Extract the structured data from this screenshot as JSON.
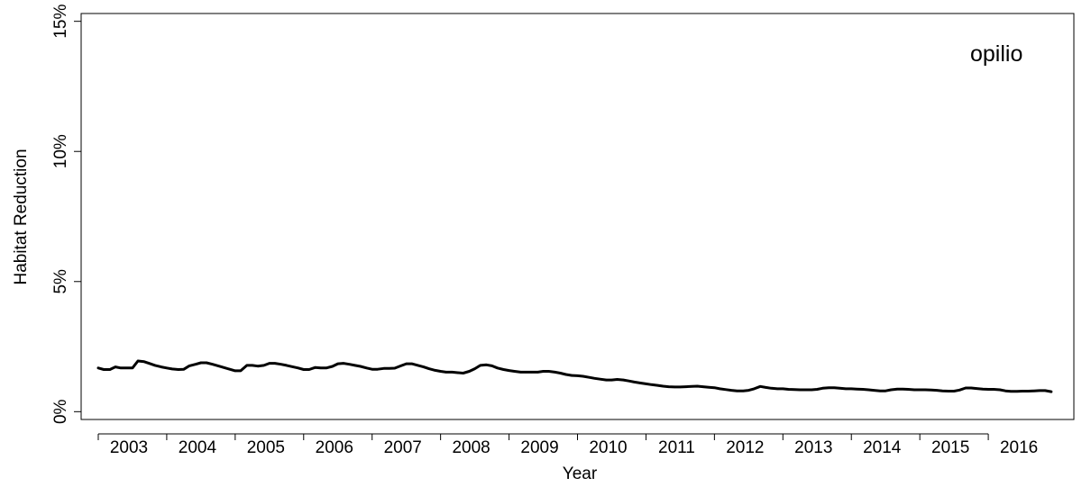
{
  "chart_data": {
    "type": "line",
    "panel_label": "opilio",
    "xlabel": "Year",
    "ylabel": "Habitat Reduction",
    "xlim": [
      2002.75,
      2017.25
    ],
    "ylim": [
      -0.3,
      15.3
    ],
    "x_ticks": [
      2003,
      2004,
      2005,
      2006,
      2007,
      2008,
      2009,
      2010,
      2011,
      2012,
      2013,
      2014,
      2015,
      2016
    ],
    "x_tick_labels": [
      "2003",
      "2004",
      "2005",
      "2006",
      "2007",
      "2008",
      "2009",
      "2010",
      "2011",
      "2012",
      "2013",
      "2014",
      "2015",
      "2016"
    ],
    "y_ticks": [
      0,
      5,
      10,
      15
    ],
    "y_tick_labels": [
      "0%",
      "5%",
      "10%",
      "15%"
    ],
    "grid": false,
    "legend": "none",
    "line_color": "#000000",
    "series": [
      {
        "x": [
          2003.0,
          2003.08,
          2003.17,
          2003.25,
          2003.33,
          2003.42,
          2003.5,
          2003.58,
          2003.67,
          2003.75,
          2003.83,
          2003.92,
          2004.0,
          2004.08,
          2004.17,
          2004.25,
          2004.33,
          2004.42,
          2004.5,
          2004.58,
          2004.67,
          2004.75,
          2004.83,
          2004.92,
          2005.0,
          2005.08,
          2005.17,
          2005.25,
          2005.33,
          2005.42,
          2005.5,
          2005.58,
          2005.67,
          2005.75,
          2005.83,
          2005.92,
          2006.0,
          2006.08,
          2006.17,
          2006.25,
          2006.33,
          2006.42,
          2006.5,
          2006.58,
          2006.67,
          2006.75,
          2006.83,
          2006.92,
          2007.0,
          2007.08,
          2007.17,
          2007.25,
          2007.33,
          2007.42,
          2007.5,
          2007.58,
          2007.67,
          2007.75,
          2007.83,
          2007.92,
          2008.0,
          2008.08,
          2008.17,
          2008.25,
          2008.33,
          2008.42,
          2008.5,
          2008.58,
          2008.67,
          2008.75,
          2008.83,
          2008.92,
          2009.0,
          2009.08,
          2009.17,
          2009.25,
          2009.33,
          2009.42,
          2009.5,
          2009.58,
          2009.67,
          2009.75,
          2009.83,
          2009.92,
          2010.0,
          2010.08,
          2010.17,
          2010.25,
          2010.33,
          2010.42,
          2010.5,
          2010.58,
          2010.67,
          2010.75,
          2010.83,
          2010.92,
          2011.0,
          2011.08,
          2011.17,
          2011.25,
          2011.33,
          2011.42,
          2011.5,
          2011.58,
          2011.67,
          2011.75,
          2011.83,
          2011.92,
          2012.0,
          2012.08,
          2012.17,
          2012.25,
          2012.33,
          2012.42,
          2012.5,
          2012.58,
          2012.67,
          2012.75,
          2012.83,
          2012.92,
          2013.0,
          2013.08,
          2013.17,
          2013.25,
          2013.33,
          2013.42,
          2013.5,
          2013.58,
          2013.67,
          2013.75,
          2013.83,
          2013.92,
          2014.0,
          2014.08,
          2014.17,
          2014.25,
          2014.33,
          2014.42,
          2014.5,
          2014.58,
          2014.67,
          2014.75,
          2014.83,
          2014.92,
          2015.0,
          2015.08,
          2015.17,
          2015.25,
          2015.33,
          2015.42,
          2015.5,
          2015.58,
          2015.67,
          2015.75,
          2015.83,
          2015.92,
          2016.0,
          2016.08,
          2016.17,
          2016.25,
          2016.33,
          2016.42,
          2016.5,
          2016.58,
          2016.67,
          2016.75,
          2016.83,
          2016.92
        ],
        "y": [
          1.68,
          1.62,
          1.62,
          1.72,
          1.68,
          1.68,
          1.68,
          1.95,
          1.92,
          1.85,
          1.78,
          1.72,
          1.68,
          1.64,
          1.62,
          1.63,
          1.76,
          1.82,
          1.88,
          1.88,
          1.82,
          1.76,
          1.7,
          1.63,
          1.57,
          1.57,
          1.78,
          1.78,
          1.75,
          1.78,
          1.86,
          1.86,
          1.82,
          1.78,
          1.73,
          1.68,
          1.62,
          1.62,
          1.7,
          1.68,
          1.68,
          1.74,
          1.84,
          1.86,
          1.82,
          1.78,
          1.74,
          1.68,
          1.63,
          1.63,
          1.66,
          1.66,
          1.67,
          1.76,
          1.84,
          1.84,
          1.78,
          1.72,
          1.65,
          1.59,
          1.55,
          1.52,
          1.52,
          1.5,
          1.48,
          1.55,
          1.65,
          1.78,
          1.8,
          1.76,
          1.68,
          1.62,
          1.58,
          1.55,
          1.52,
          1.52,
          1.52,
          1.52,
          1.55,
          1.55,
          1.52,
          1.48,
          1.43,
          1.39,
          1.38,
          1.36,
          1.32,
          1.28,
          1.25,
          1.22,
          1.22,
          1.24,
          1.22,
          1.18,
          1.14,
          1.1,
          1.07,
          1.04,
          1.01,
          0.98,
          0.96,
          0.95,
          0.95,
          0.96,
          0.97,
          0.98,
          0.96,
          0.94,
          0.92,
          0.88,
          0.85,
          0.82,
          0.8,
          0.8,
          0.82,
          0.88,
          0.97,
          0.93,
          0.9,
          0.88,
          0.88,
          0.86,
          0.85,
          0.84,
          0.84,
          0.84,
          0.86,
          0.9,
          0.92,
          0.92,
          0.9,
          0.88,
          0.88,
          0.87,
          0.86,
          0.84,
          0.82,
          0.8,
          0.8,
          0.84,
          0.87,
          0.87,
          0.86,
          0.84,
          0.84,
          0.84,
          0.83,
          0.82,
          0.8,
          0.79,
          0.79,
          0.83,
          0.91,
          0.91,
          0.89,
          0.87,
          0.86,
          0.86,
          0.84,
          0.8,
          0.78,
          0.78,
          0.79,
          0.79,
          0.8,
          0.81,
          0.81,
          0.77
        ]
      }
    ]
  }
}
